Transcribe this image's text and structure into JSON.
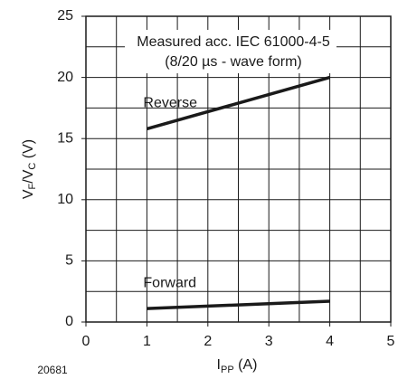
{
  "chart_data": {
    "type": "line",
    "x": [
      1,
      4
    ],
    "series": [
      {
        "name": "Reverse",
        "color": "#1a1a1a",
        "values": [
          15.8,
          20
        ]
      },
      {
        "name": "Forward",
        "color": "#1a1a1a",
        "values": [
          1.1,
          1.7
        ]
      }
    ],
    "xlim": [
      0,
      5
    ],
    "xticks": [
      0,
      1,
      2,
      3,
      4,
      5
    ],
    "ylim": [
      0,
      25
    ],
    "yticks": [
      0,
      5,
      10,
      15,
      20,
      25
    ],
    "xgrid": [
      0.5,
      1,
      1.5,
      2,
      2.5,
      3,
      3.5,
      4,
      4.5
    ],
    "ygrid": [
      2.5,
      5,
      7.5,
      10,
      12.5,
      15,
      17.5,
      20,
      22.5
    ],
    "ylabel": [
      "V",
      "F",
      "/V",
      "C",
      " (V)"
    ],
    "xlabel": [
      "I",
      "PP",
      " (A)"
    ],
    "annotations": [
      "Measured acc. IEC 61000-4-5",
      "(8/20 µs - wave form)"
    ],
    "figure_id": "20681"
  }
}
